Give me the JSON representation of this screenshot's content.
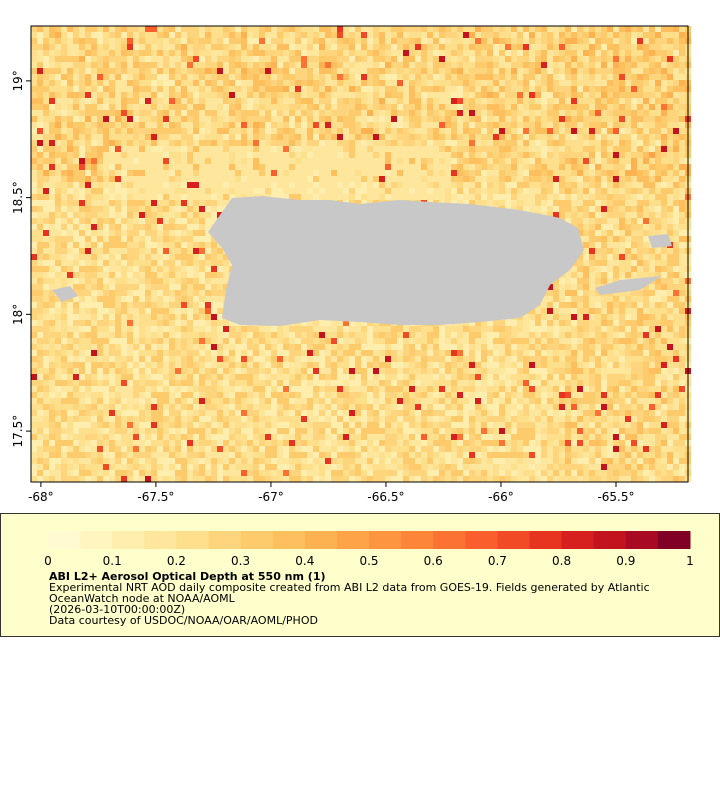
{
  "map": {
    "xlim": [
      -68.043,
      -65.187
    ],
    "ylim": [
      17.282,
      19.235
    ],
    "xticks": [
      {
        "value": -68,
        "label": "-68°"
      },
      {
        "value": -67.5,
        "label": "-67.5°"
      },
      {
        "value": -67,
        "label": "-67°"
      },
      {
        "value": -66.5,
        "label": "-66.5°"
      },
      {
        "value": -66,
        "label": "-66°"
      },
      {
        "value": -65.5,
        "label": "-65.5°"
      }
    ],
    "yticks": [
      {
        "value": 17.5,
        "label": "17.5°"
      },
      {
        "value": 18,
        "label": "18°"
      },
      {
        "value": 18.5,
        "label": "18.5°"
      },
      {
        "value": 19,
        "label": "19°"
      }
    ],
    "land_color": "#c8c8c8"
  },
  "colorbar": {
    "range": [
      0,
      1
    ],
    "ticks": [
      0,
      0.1,
      0.2,
      0.3,
      0.4,
      0.5,
      0.6,
      0.7,
      0.8,
      0.9,
      1
    ],
    "colors": [
      "#fffad2",
      "#fff5c0",
      "#ffeeae",
      "#fee79c",
      "#fedf8c",
      "#fed57c",
      "#fecb6c",
      "#febf5e",
      "#fdb252",
      "#fda448",
      "#fd9540",
      "#fc853a",
      "#fb7232",
      "#f95e2c",
      "#f14a26",
      "#e63421",
      "#d6201f",
      "#c2131f",
      "#a80a24",
      "#800026"
    ]
  },
  "title": "ABI L2+ Aerosol Optical Depth at 550 nm (1)",
  "description": [
    "Experimental NRT AOD daily composite created from ABI L2 data from GOES-19. Fields generated by Atlantic OceanWatch node at NOAA/AOML",
    "(2026-03-10T00:00:00Z)",
    "Data courtesy of USDOC/NOAA/OAR/AOML/PHOD"
  ]
}
